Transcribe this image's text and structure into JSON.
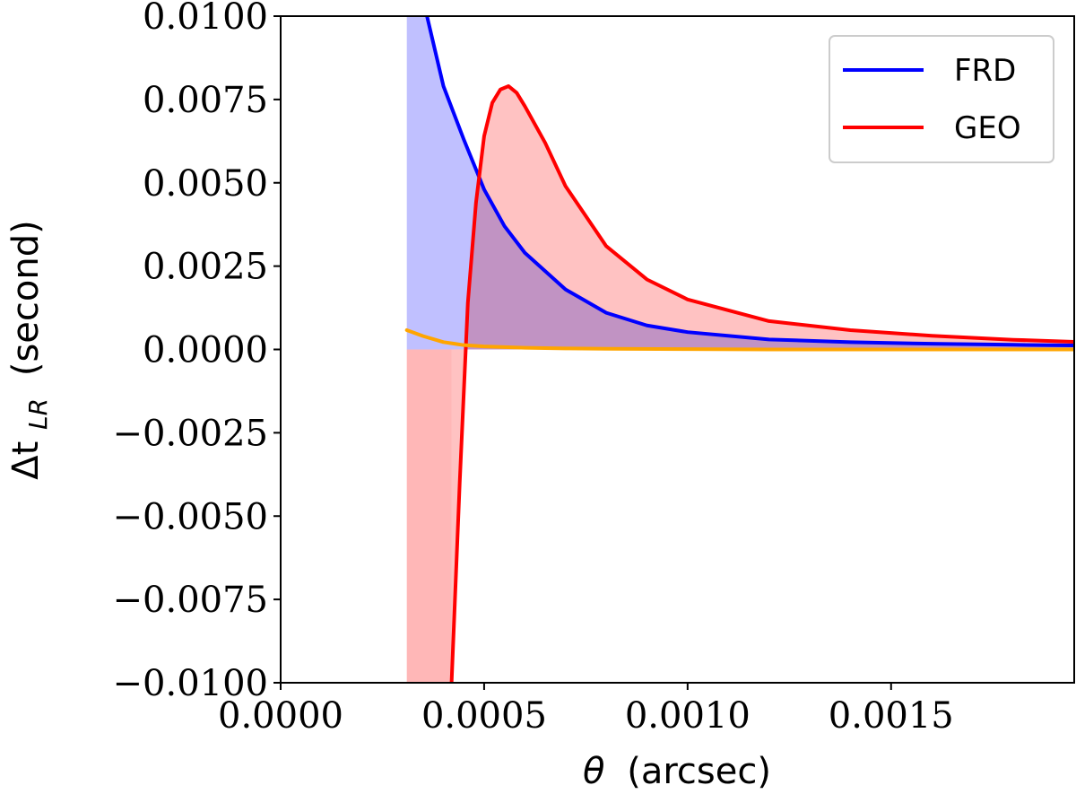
{
  "chart_data": {
    "type": "line",
    "xlabel_symbol": "θ",
    "xlabel_unit": "(arcsec)",
    "ylabel_symbol": "Δt",
    "ylabel_sub": "LR",
    "ylabel_unit": "(second)",
    "xlim": [
      0.0,
      0.00195
    ],
    "ylim": [
      -0.01,
      0.01
    ],
    "x_ticks": [
      0.0,
      0.0005,
      0.001,
      0.0015
    ],
    "x_tick_labels": [
      "0.0000",
      "0.0005",
      "0.0010",
      "0.0015"
    ],
    "y_ticks": [
      0.01,
      0.0075,
      0.005,
      0.0025,
      0.0,
      -0.0025,
      -0.005,
      -0.0075,
      -0.01
    ],
    "y_tick_labels": [
      "0.0100",
      "0.0075",
      "0.0050",
      "0.0025",
      "0.0000",
      "−0.0025",
      "−0.0050",
      "−0.0075",
      "−0.0100"
    ],
    "grid": false,
    "legend_position": "top-right",
    "series": [
      {
        "name": "FRD",
        "color": "#0000ff",
        "fill_color": "#b0b0ff",
        "x": [
          0.00031,
          0.00035,
          0.0004,
          0.00045,
          0.0005,
          0.00055,
          0.0006,
          0.0007,
          0.0008,
          0.0009,
          0.001,
          0.0012,
          0.0014,
          0.0016,
          0.0018,
          0.00195
        ],
        "y": [
          0.0128,
          0.0105,
          0.0079,
          0.0063,
          0.0048,
          0.0037,
          0.0029,
          0.0018,
          0.0011,
          0.00072,
          0.00052,
          0.0003,
          0.00022,
          0.00017,
          0.00014,
          0.00012
        ]
      },
      {
        "name": "GEO",
        "color": "#ff0000",
        "fill_color": "#ffb3b3",
        "x": [
          0.00042,
          0.00044,
          0.00046,
          0.00048,
          0.0005,
          0.00052,
          0.00054,
          0.00056,
          0.00058,
          0.0006,
          0.00065,
          0.0007,
          0.0008,
          0.0009,
          0.001,
          0.0012,
          0.0014,
          0.0016,
          0.0018,
          0.00195
        ],
        "y": [
          -0.01,
          -0.004,
          0.0014,
          0.0044,
          0.0064,
          0.0074,
          0.0078,
          0.0079,
          0.0077,
          0.0073,
          0.0062,
          0.0049,
          0.0031,
          0.0021,
          0.0015,
          0.00085,
          0.00058,
          0.00041,
          0.00029,
          0.00023
        ]
      },
      {
        "color": "#ffa500",
        "x": [
          0.00031,
          0.00035,
          0.0004,
          0.00045,
          0.0005,
          0.0006,
          0.0007,
          0.0008,
          0.001,
          0.0012,
          0.0015,
          0.00195
        ],
        "y": [
          0.00058,
          0.0004,
          0.00022,
          0.00013,
          9e-05,
          5e-05,
          3e-05,
          2e-05,
          1e-05,
          0.0,
          0.0,
          0.0
        ]
      }
    ],
    "fill_region": {
      "color": "#ffb3b3",
      "x_range": [
        0.00031,
        0.00042
      ],
      "y_range": [
        -0.01,
        0.0
      ]
    }
  }
}
